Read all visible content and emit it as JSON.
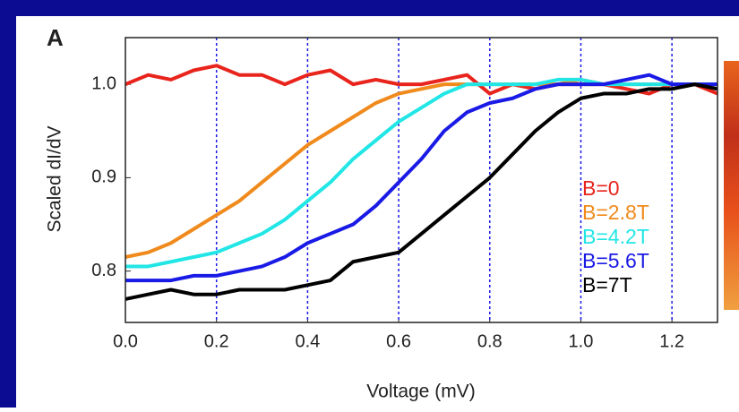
{
  "chart_data": {
    "type": "line",
    "panel_label": "A",
    "xlabel": "Voltage (mV)",
    "ylabel": "Scaled dI/dV",
    "x": [
      0,
      0.05,
      0.1,
      0.15,
      0.2,
      0.25,
      0.3,
      0.35,
      0.4,
      0.45,
      0.5,
      0.55,
      0.6,
      0.65,
      0.7,
      0.75,
      0.8,
      0.85,
      0.9,
      0.95,
      1.0,
      1.05,
      1.1,
      1.15,
      1.2,
      1.25,
      1.3
    ],
    "series": [
      {
        "name": "B=0",
        "color": "#e8241c",
        "values": [
          1.0,
          1.01,
          1.005,
          1.015,
          1.02,
          1.01,
          1.01,
          1.0,
          1.01,
          1.015,
          1.0,
          1.005,
          1.0,
          1.0,
          1.005,
          1.01,
          0.99,
          1.0,
          0.995,
          1.0,
          1.0,
          1.0,
          0.995,
          0.99,
          1.0,
          1.0,
          0.99
        ]
      },
      {
        "name": "B=2.8T",
        "color": "#f08a1c",
        "values": [
          0.815,
          0.82,
          0.83,
          0.845,
          0.86,
          0.875,
          0.895,
          0.915,
          0.935,
          0.95,
          0.965,
          0.98,
          0.99,
          0.995,
          1.0,
          1.0,
          1.0,
          1.0,
          1.0,
          1.0,
          1.005,
          1.0,
          1.0,
          1.0,
          1.0,
          1.0,
          1.0
        ]
      },
      {
        "name": "B=4.2T",
        "color": "#22e6e6",
        "values": [
          0.805,
          0.805,
          0.81,
          0.815,
          0.82,
          0.83,
          0.84,
          0.855,
          0.875,
          0.895,
          0.92,
          0.94,
          0.96,
          0.975,
          0.99,
          1.0,
          1.0,
          1.0,
          1.0,
          1.005,
          1.005,
          1.0,
          1.0,
          1.0,
          1.0,
          1.0,
          1.0
        ]
      },
      {
        "name": "B=5.6T",
        "color": "#1a1ae6",
        "values": [
          0.79,
          0.79,
          0.79,
          0.795,
          0.795,
          0.8,
          0.805,
          0.815,
          0.83,
          0.84,
          0.85,
          0.87,
          0.895,
          0.92,
          0.95,
          0.97,
          0.98,
          0.985,
          0.995,
          1.0,
          1.0,
          1.0,
          1.005,
          1.01,
          1.0,
          1.0,
          1.0
        ]
      },
      {
        "name": "B=7T",
        "color": "#000000",
        "values": [
          0.77,
          0.775,
          0.78,
          0.775,
          0.775,
          0.78,
          0.78,
          0.78,
          0.785,
          0.79,
          0.81,
          0.815,
          0.82,
          0.84,
          0.86,
          0.88,
          0.9,
          0.925,
          0.95,
          0.97,
          0.985,
          0.99,
          0.99,
          0.995,
          0.995,
          1.0,
          0.995
        ]
      }
    ],
    "xlim": [
      0,
      1.3
    ],
    "xticks": [
      {
        "value": 0,
        "label": "0.0"
      },
      0.2,
      0.4,
      0.6,
      0.8,
      {
        "value": 1.0,
        "label": "1.0"
      },
      1.2
    ],
    "ylim": [
      0.745,
      1.05
    ],
    "yticks": [
      0.8,
      0.9,
      {
        "value": 1.0,
        "label": "1.0"
      }
    ],
    "grid_x": true,
    "grid_color": "#1a1ae6",
    "legend": "right"
  }
}
